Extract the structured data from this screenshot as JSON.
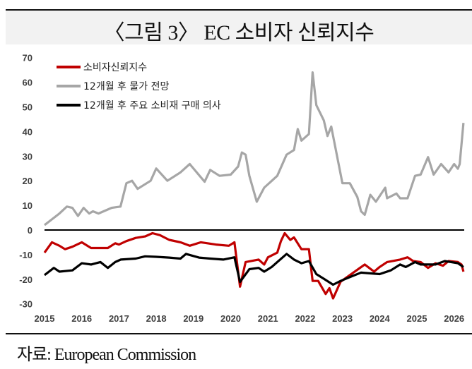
{
  "chart_data": {
    "type": "line",
    "title": "〈그림 3〉 EC 소비자 신뢰지수",
    "source": "자료: European Commission",
    "xlabel": "",
    "ylabel": "",
    "xlim": [
      2015,
      2026.3
    ],
    "ylim": [
      -30,
      70
    ],
    "x_ticks": [
      "2015",
      "2016",
      "2017",
      "2018",
      "2019",
      "2020",
      "2021",
      "2022",
      "2023",
      "2024",
      "2025",
      "2026"
    ],
    "y_ticks": [
      "70",
      "60",
      "50",
      "40",
      "30",
      "20",
      "10",
      "0",
      "-10",
      "-20",
      "-30"
    ],
    "y_tick_values": [
      70,
      60,
      50,
      40,
      30,
      20,
      10,
      0,
      -10,
      -20,
      -30
    ],
    "grid": false,
    "legend_position": "top-left",
    "series": [
      {
        "name": "소비자신뢰지수",
        "color": "#c00000",
        "x": [
          2015.0,
          2015.2,
          2015.4,
          2015.55,
          2015.75,
          2016.0,
          2016.25,
          2016.7,
          2016.9,
          2017.0,
          2017.2,
          2017.45,
          2017.7,
          2017.9,
          2018.1,
          2018.35,
          2018.65,
          2018.9,
          2019.2,
          2019.6,
          2019.95,
          2020.1,
          2020.25,
          2020.4,
          2020.75,
          2020.9,
          2021.0,
          2021.25,
          2021.35,
          2021.45,
          2021.6,
          2021.7,
          2021.9,
          2022.1,
          2022.2,
          2022.35,
          2022.55,
          2022.65,
          2022.75,
          2022.95,
          2023.2,
          2023.6,
          2023.85,
          2024.0,
          2024.2,
          2024.55,
          2024.75,
          2024.9,
          2025.1,
          2025.3,
          2025.5,
          2025.7,
          2025.85,
          2026.1,
          2026.2,
          2026.25
        ],
        "y": [
          -9.2,
          -5,
          -6.4,
          -7.8,
          -6.8,
          -5,
          -7.3,
          -7.3,
          -5.4,
          -5.9,
          -4.5,
          -3.2,
          -2.6,
          -1.3,
          -2.1,
          -4,
          -5,
          -6.4,
          -5,
          -5.9,
          -6.4,
          -5,
          -23,
          -13,
          -12,
          -14,
          -11.1,
          -9.2,
          -4.5,
          -1.3,
          -4,
          -3,
          -7.8,
          -7.8,
          -20.7,
          -20.7,
          -26,
          -23.6,
          -27.8,
          -21,
          -18.3,
          -14,
          -16.9,
          -15,
          -13,
          -12,
          -11.1,
          -12.6,
          -13,
          -15.4,
          -13.5,
          -14.5,
          -12.6,
          -13,
          -14,
          -16.9
        ]
      },
      {
        "name": "12개월 후 물가 전망",
        "color": "#a6a6a6",
        "x": [
          2015.0,
          2015.4,
          2015.6,
          2015.75,
          2015.9,
          2016.05,
          2016.2,
          2016.3,
          2016.45,
          2016.8,
          2017.04,
          2017.2,
          2017.35,
          2017.5,
          2017.85,
          2018.0,
          2018.3,
          2018.65,
          2018.9,
          2019.3,
          2019.45,
          2019.7,
          2020.0,
          2020.2,
          2020.3,
          2020.4,
          2020.5,
          2020.7,
          2020.9,
          2021.25,
          2021.5,
          2021.7,
          2021.8,
          2021.9,
          2022.1,
          2022.2,
          2022.3,
          2022.5,
          2022.6,
          2022.7,
          2023.0,
          2023.2,
          2023.4,
          2023.5,
          2023.6,
          2023.75,
          2023.9,
          2024.15,
          2024.2,
          2024.45,
          2024.55,
          2024.75,
          2024.95,
          2025.1,
          2025.3,
          2025.45,
          2025.65,
          2025.85,
          2026.0,
          2026.1,
          2026.15,
          2026.25
        ],
        "y": [
          2,
          6.7,
          9.5,
          9,
          5.7,
          9,
          6.7,
          7.6,
          6.7,
          9,
          9.5,
          19,
          20,
          16.7,
          20,
          25,
          20,
          23.4,
          26.8,
          19.6,
          24.4,
          22,
          22.5,
          25.8,
          31.5,
          30.6,
          22,
          11.5,
          17.2,
          22,
          30.6,
          32.5,
          41,
          36.3,
          39,
          64,
          50.7,
          44.5,
          38.2,
          42,
          19,
          19,
          13.4,
          7.6,
          6.2,
          14.3,
          11.5,
          17.2,
          12.9,
          14.8,
          12.9,
          12.9,
          22,
          22.5,
          29.6,
          22.5,
          26.8,
          23.4,
          26.8,
          24.9,
          26.8,
          43.5
        ]
      },
      {
        "name": "12개월 후 주요 소비재 구매 의사",
        "color": "#000000",
        "x": [
          2015.0,
          2015.25,
          2015.4,
          2015.75,
          2016.0,
          2016.25,
          2016.5,
          2016.7,
          2016.9,
          2017.05,
          2017.45,
          2017.7,
          2018.0,
          2018.35,
          2018.65,
          2018.8,
          2019.15,
          2019.45,
          2019.8,
          2020.1,
          2020.25,
          2020.5,
          2020.75,
          2020.9,
          2021.1,
          2021.25,
          2021.5,
          2021.7,
          2021.9,
          2022.1,
          2022.3,
          2022.5,
          2022.75,
          2022.95,
          2023.25,
          2023.5,
          2024.0,
          2024.3,
          2024.55,
          2024.7,
          2024.95,
          2025.1,
          2025.5,
          2025.75,
          2026.1,
          2026.25
        ],
        "y": [
          -18.3,
          -15.4,
          -16.9,
          -16.4,
          -13.5,
          -14,
          -13,
          -15.4,
          -13,
          -12,
          -11.6,
          -10.7,
          -10.9,
          -11.2,
          -11.6,
          -9.7,
          -11.2,
          -11.6,
          -12,
          -11.1,
          -21.1,
          -15.9,
          -15.4,
          -16.9,
          -15,
          -13,
          -9.7,
          -12,
          -13.5,
          -12.6,
          -17.9,
          -19.8,
          -22.2,
          -20.7,
          -18.8,
          -17.3,
          -17.9,
          -16.4,
          -14,
          -15,
          -13,
          -14,
          -14,
          -12.6,
          -13.5,
          -15
        ]
      }
    ]
  }
}
